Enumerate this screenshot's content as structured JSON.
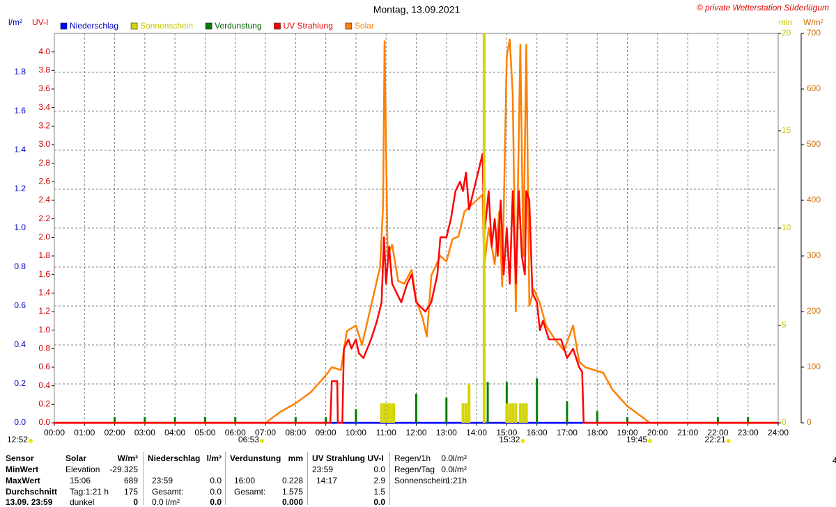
{
  "chart_data": {
    "type": "line",
    "title": "Montag, 13.09.2021",
    "credit": "© private Wetterstation Süderlügum",
    "axis_titles": {
      "y": "l/m²",
      "y2": "UV-I",
      "y3": "min",
      "y4": "W/m²"
    },
    "xlim": [
      0,
      24
    ],
    "xticks": [
      {
        "value": 0,
        "label": "00:00"
      },
      {
        "value": 1,
        "label": "01:00"
      },
      {
        "value": 2,
        "label": "02:00"
      },
      {
        "value": 3,
        "label": "03:00"
      },
      {
        "value": 4,
        "label": "04:00"
      },
      {
        "value": 5,
        "label": "05:00"
      },
      {
        "value": 6,
        "label": "06:00"
      },
      {
        "value": 7,
        "label": "07:00"
      },
      {
        "value": 8,
        "label": "08:00"
      },
      {
        "value": 9,
        "label": "09:00"
      },
      {
        "value": 10,
        "label": "10:00"
      },
      {
        "value": 11,
        "label": "11:00"
      },
      {
        "value": 12,
        "label": "12:00"
      },
      {
        "value": 13,
        "label": "13:00"
      },
      {
        "value": 14,
        "label": "14:00"
      },
      {
        "value": 15,
        "label": "15:00"
      },
      {
        "value": 16,
        "label": "16:00"
      },
      {
        "value": 17,
        "label": "17:00"
      },
      {
        "value": 18,
        "label": "18:00"
      },
      {
        "value": 19,
        "label": "19:00"
      },
      {
        "value": 20,
        "label": "20:00"
      },
      {
        "value": 21,
        "label": "21:00"
      },
      {
        "value": 22,
        "label": "22:00"
      },
      {
        "value": 23,
        "label": "23:00"
      },
      {
        "value": 24,
        "label": "24:00"
      }
    ],
    "ylim": [
      0,
      2
    ],
    "yticks": [
      {
        "value": 0,
        "label": "0.0"
      },
      {
        "value": 0.2,
        "label": "0.2"
      },
      {
        "value": 0.4,
        "label": "0.4"
      },
      {
        "value": 0.6,
        "label": "0.6"
      },
      {
        "value": 0.8,
        "label": "0.8"
      },
      {
        "value": 1,
        "label": "1.0"
      },
      {
        "value": 1.2,
        "label": "1.2"
      },
      {
        "value": 1.4,
        "label": "1.4"
      },
      {
        "value": 1.6,
        "label": "1.6"
      },
      {
        "value": 1.8,
        "label": "1.8"
      }
    ],
    "y2lim": [
      0,
      4.2
    ],
    "y2ticks": [
      {
        "value": 0,
        "label": "0.0"
      },
      {
        "value": 0.2,
        "label": "0.2"
      },
      {
        "value": 0.4,
        "label": "0.4"
      },
      {
        "value": 0.6,
        "label": "0.6"
      },
      {
        "value": 0.8,
        "label": "0.8"
      },
      {
        "value": 1,
        "label": "1.0"
      },
      {
        "value": 1.2,
        "label": "1.2"
      },
      {
        "value": 1.4,
        "label": "1.4"
      },
      {
        "value": 1.6,
        "label": "1.6"
      },
      {
        "value": 1.8,
        "label": "1.8"
      },
      {
        "value": 2,
        "label": "2.0"
      },
      {
        "value": 2.2,
        "label": "2.2"
      },
      {
        "value": 2.4,
        "label": "2.4"
      },
      {
        "value": 2.6,
        "label": "2.6"
      },
      {
        "value": 2.8,
        "label": "2.8"
      },
      {
        "value": 3,
        "label": "3.0"
      },
      {
        "value": 3.2,
        "label": "3.2"
      },
      {
        "value": 3.4,
        "label": "3.4"
      },
      {
        "value": 3.6,
        "label": "3.6"
      },
      {
        "value": 3.8,
        "label": "3.8"
      },
      {
        "value": 4,
        "label": "4.0"
      }
    ],
    "y3lim": [
      0,
      20
    ],
    "y3ticks": [
      0,
      5,
      10,
      15,
      20
    ],
    "y4lim": [
      0,
      700
    ],
    "y4ticks": [
      0,
      100,
      200,
      300,
      400,
      500,
      600,
      700
    ],
    "grid": true,
    "series": [
      {
        "name": "Niederschlag",
        "color": "#0000ff",
        "kind": "line",
        "axis": "y",
        "x": [
          0,
          24
        ],
        "values": [
          0,
          0
        ]
      },
      {
        "name": "Sonnenschein",
        "color": "#d4d400",
        "kind": "bar",
        "axis": "y3",
        "x": [
          10.85,
          10.95,
          11.05,
          11.15,
          11.25,
          13.55,
          13.65,
          13.75,
          14.25,
          15.0,
          15.1,
          15.2,
          15.3,
          15.45,
          15.55,
          15.65
        ],
        "values": [
          1,
          1,
          1,
          1,
          1,
          1,
          1,
          2,
          20,
          1,
          1,
          1,
          1,
          1,
          1,
          1
        ]
      },
      {
        "name": "Verdunstung",
        "color": "#008000",
        "kind": "bar",
        "axis": "y",
        "x": [
          2,
          3,
          4,
          5,
          6,
          8,
          9,
          10,
          12,
          13,
          14.37,
          15,
          16,
          17,
          18,
          19,
          22,
          23
        ],
        "values": [
          0.03,
          0.03,
          0.03,
          0.03,
          0.03,
          0.03,
          0.03,
          0.07,
          0.15,
          0.13,
          0.21,
          0.21,
          0.228,
          0.11,
          0.06,
          0.03,
          0.03,
          0.03
        ]
      },
      {
        "name": "UV Strahlung",
        "color": "#ff0000",
        "kind": "line",
        "axis": "y2",
        "x": [
          0,
          9.15,
          9.2,
          9.38,
          9.4,
          9.55,
          9.6,
          9.75,
          9.85,
          10.0,
          10.1,
          10.25,
          10.5,
          10.7,
          10.85,
          10.93,
          11.0,
          11.1,
          11.2,
          11.35,
          11.5,
          11.7,
          11.85,
          12.0,
          12.3,
          12.5,
          12.7,
          12.8,
          13.0,
          13.15,
          13.3,
          13.45,
          13.55,
          13.65,
          13.75,
          14.2,
          14.25,
          14.4,
          14.5,
          14.6,
          14.7,
          14.8,
          14.9,
          15.0,
          15.1,
          15.2,
          15.3,
          15.4,
          15.5,
          15.6,
          15.65,
          15.75,
          15.85,
          16.0,
          16.1,
          16.2,
          16.4,
          16.6,
          16.8,
          17.0,
          17.2,
          17.4,
          17.5,
          17.55,
          24
        ],
        "values": [
          0,
          0,
          0.45,
          0.45,
          0,
          0,
          0.8,
          0.9,
          0.8,
          0.9,
          0.75,
          0.7,
          0.9,
          1.1,
          1.3,
          2.0,
          1.5,
          1.9,
          1.5,
          1.4,
          1.3,
          1.5,
          1.6,
          1.3,
          1.2,
          1.3,
          1.6,
          2.0,
          2.0,
          2.2,
          2.5,
          2.6,
          2.5,
          2.7,
          2.3,
          2.9,
          2.0,
          2.5,
          1.9,
          2.2,
          1.8,
          2.4,
          1.6,
          2.1,
          1.5,
          2.5,
          1.5,
          2.5,
          1.8,
          1.6,
          2.5,
          2.4,
          1.4,
          1.3,
          1.0,
          1.1,
          0.9,
          0.9,
          0.9,
          0.7,
          0.8,
          0.6,
          0.55,
          0,
          0
        ]
      },
      {
        "name": "Solar",
        "color": "#ff8000",
        "kind": "line",
        "axis": "y4",
        "x": [
          0,
          7.0,
          7.5,
          8.0,
          8.5,
          9.0,
          9.2,
          9.5,
          9.7,
          10.0,
          10.2,
          10.5,
          10.8,
          10.9,
          10.95,
          11.05,
          11.2,
          11.4,
          11.6,
          11.85,
          12.0,
          12.2,
          12.35,
          12.5,
          12.8,
          13.0,
          13.2,
          13.4,
          13.6,
          14.2,
          14.25,
          14.4,
          14.6,
          14.75,
          14.85,
          15.0,
          15.1,
          15.2,
          15.3,
          15.45,
          15.55,
          15.65,
          15.75,
          15.9,
          16.1,
          16.3,
          16.6,
          16.9,
          17.2,
          17.4,
          17.6,
          17.9,
          18.2,
          18.5,
          19.0,
          19.5,
          19.75,
          24
        ],
        "values": [
          0,
          0,
          20,
          35,
          55,
          85,
          100,
          95,
          165,
          175,
          140,
          210,
          280,
          390,
          686,
          300,
          320,
          255,
          250,
          275,
          220,
          190,
          155,
          265,
          300,
          290,
          330,
          335,
          380,
          410,
          280,
          350,
          285,
          380,
          245,
          660,
          689,
          590,
          200,
          680,
          300,
          680,
          210,
          240,
          215,
          175,
          150,
          130,
          175,
          110,
          100,
          95,
          90,
          60,
          30,
          10,
          0,
          0
        ]
      }
    ],
    "day_length": "12:52",
    "sun_times": [
      {
        "x": 6.883,
        "label": "06:53"
      },
      {
        "x": 15.533,
        "label": "15:32"
      },
      {
        "x": 19.75,
        "label": "19:45"
      },
      {
        "x": 22.35,
        "label": "22:21"
      }
    ],
    "edge_label": "4"
  },
  "table": {
    "rows": [
      [
        "Sensor",
        "Solar",
        "W/m²",
        "Niederschlag",
        "l/m²",
        "Verdunstung",
        "mm",
        "UV Strahlung UV-I",
        null,
        "Regen/1h",
        "0.0l/m²"
      ],
      [
        "MinWert",
        "Elevation",
        "-29.325",
        null,
        null,
        null,
        null,
        "23:59",
        "0.0",
        "Regen/Tag",
        "0.0l/m²"
      ],
      [
        "MaxWert",
        "15:06",
        "689",
        "23:59",
        "0.0",
        "16:00",
        "0.228",
        "14:17",
        "2.9",
        "Sonnenschein",
        "1:21h"
      ],
      [
        "Durchschnitt",
        "Tag:1:21 h",
        "175",
        "Gesamt:",
        "0.0",
        "Gesamt:",
        "1.575",
        null,
        "1.5",
        null,
        null
      ],
      [
        "13.09. 23:59",
        "dunkel",
        "0",
        "0.0 l/m²",
        "0.0",
        null,
        "0.000",
        null,
        "0.0",
        null,
        null
      ]
    ]
  }
}
